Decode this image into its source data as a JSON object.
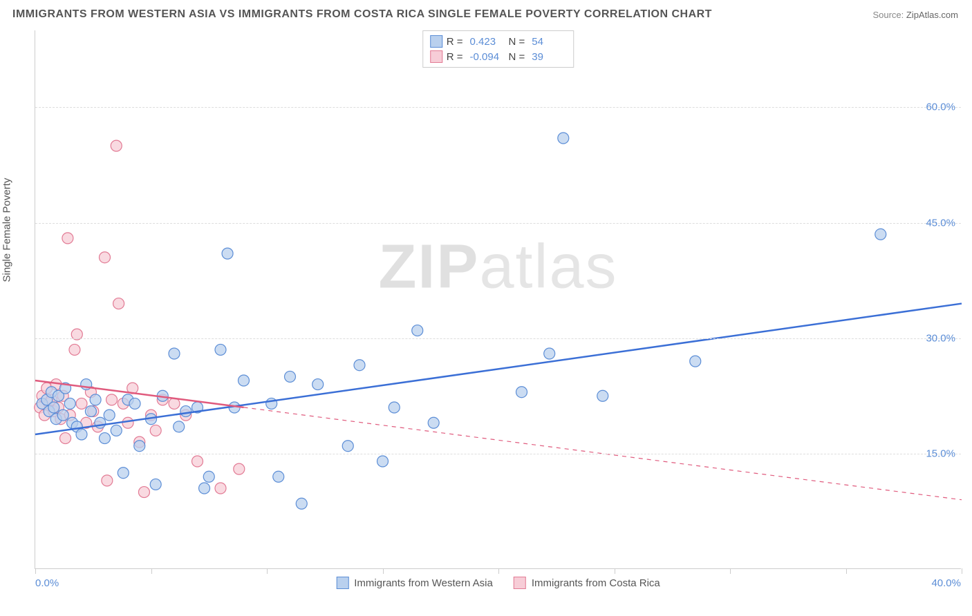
{
  "title": "IMMIGRANTS FROM WESTERN ASIA VS IMMIGRANTS FROM COSTA RICA SINGLE FEMALE POVERTY CORRELATION CHART",
  "source_label": "Source: ",
  "source_value": "ZipAtlas.com",
  "ylabel": "Single Female Poverty",
  "watermark_bold": "ZIP",
  "watermark_light": "atlas",
  "chart": {
    "type": "scatter",
    "xlim": [
      0,
      40
    ],
    "ylim": [
      0,
      70
    ],
    "x_tick_positions": [
      0,
      5,
      10,
      15,
      20,
      25,
      30,
      35,
      40
    ],
    "x_ticklabels_shown": {
      "0": "0.0%",
      "40": "40.0%"
    },
    "y_gridlines": [
      15,
      30,
      45,
      60
    ],
    "y_ticklabels": [
      "15.0%",
      "30.0%",
      "45.0%",
      "60.0%"
    ],
    "grid_color": "#dddddd",
    "axis_color": "#cccccc",
    "tick_label_color": "#5b8dd6",
    "background_color": "#ffffff",
    "marker_radius": 8,
    "marker_stroke_width": 1.2,
    "trend_line_width": 2.5,
    "series": [
      {
        "name": "Immigrants from Western Asia",
        "fill_color": "#b9d0ee",
        "stroke_color": "#5b8dd6",
        "trend_color": "#3b6fd6",
        "trend_solid_range": [
          0,
          40
        ],
        "R": "0.423",
        "N": "54",
        "trend_line": {
          "x1": 0,
          "y1": 17.5,
          "x2": 40,
          "y2": 34.5
        },
        "points": [
          [
            0.3,
            21.5
          ],
          [
            0.5,
            22.0
          ],
          [
            0.6,
            20.5
          ],
          [
            0.7,
            23.0
          ],
          [
            0.8,
            21.0
          ],
          [
            0.9,
            19.5
          ],
          [
            1.0,
            22.5
          ],
          [
            1.2,
            20.0
          ],
          [
            1.3,
            23.5
          ],
          [
            1.5,
            21.5
          ],
          [
            1.6,
            19.0
          ],
          [
            1.8,
            18.5
          ],
          [
            2.0,
            17.5
          ],
          [
            2.2,
            24.0
          ],
          [
            2.4,
            20.5
          ],
          [
            2.6,
            22.0
          ],
          [
            2.8,
            19.0
          ],
          [
            3.0,
            17.0
          ],
          [
            3.2,
            20.0
          ],
          [
            3.5,
            18.0
          ],
          [
            3.8,
            12.5
          ],
          [
            4.0,
            22.0
          ],
          [
            4.3,
            21.5
          ],
          [
            4.5,
            16.0
          ],
          [
            5.0,
            19.5
          ],
          [
            5.2,
            11.0
          ],
          [
            5.5,
            22.5
          ],
          [
            6.0,
            28.0
          ],
          [
            6.2,
            18.5
          ],
          [
            6.5,
            20.5
          ],
          [
            7.0,
            21.0
          ],
          [
            7.3,
            10.5
          ],
          [
            7.5,
            12.0
          ],
          [
            8.0,
            28.5
          ],
          [
            8.3,
            41.0
          ],
          [
            8.6,
            21.0
          ],
          [
            9.0,
            24.5
          ],
          [
            10.2,
            21.5
          ],
          [
            10.5,
            12.0
          ],
          [
            11.0,
            25.0
          ],
          [
            11.5,
            8.5
          ],
          [
            12.2,
            24.0
          ],
          [
            13.5,
            16.0
          ],
          [
            14.0,
            26.5
          ],
          [
            15.0,
            14.0
          ],
          [
            15.5,
            21.0
          ],
          [
            16.5,
            31.0
          ],
          [
            17.2,
            19.0
          ],
          [
            21.0,
            23.0
          ],
          [
            22.2,
            28.0
          ],
          [
            22.8,
            56.0
          ],
          [
            24.5,
            22.5
          ],
          [
            28.5,
            27.0
          ],
          [
            36.5,
            43.5
          ]
        ]
      },
      {
        "name": "Immigrants from Costa Rica",
        "fill_color": "#f7cdd7",
        "stroke_color": "#e27a94",
        "trend_color": "#e05a7d",
        "trend_solid_range": [
          0,
          9
        ],
        "R": "-0.094",
        "N": "39",
        "trend_line": {
          "x1": 0,
          "y1": 24.5,
          "x2": 40,
          "y2": 9.0
        },
        "points": [
          [
            0.2,
            21.0
          ],
          [
            0.3,
            22.5
          ],
          [
            0.4,
            20.0
          ],
          [
            0.5,
            23.5
          ],
          [
            0.6,
            21.5
          ],
          [
            0.7,
            22.0
          ],
          [
            0.8,
            20.5
          ],
          [
            0.9,
            24.0
          ],
          [
            1.0,
            21.0
          ],
          [
            1.1,
            19.5
          ],
          [
            1.2,
            22.5
          ],
          [
            1.3,
            17.0
          ],
          [
            1.4,
            43.0
          ],
          [
            1.5,
            20.0
          ],
          [
            1.7,
            28.5
          ],
          [
            1.8,
            30.5
          ],
          [
            2.0,
            21.5
          ],
          [
            2.2,
            19.0
          ],
          [
            2.4,
            23.0
          ],
          [
            2.5,
            20.5
          ],
          [
            2.7,
            18.5
          ],
          [
            3.0,
            40.5
          ],
          [
            3.1,
            11.5
          ],
          [
            3.3,
            22.0
          ],
          [
            3.5,
            55.0
          ],
          [
            3.6,
            34.5
          ],
          [
            3.8,
            21.5
          ],
          [
            4.0,
            19.0
          ],
          [
            4.2,
            23.5
          ],
          [
            4.5,
            16.5
          ],
          [
            4.7,
            10.0
          ],
          [
            5.0,
            20.0
          ],
          [
            5.2,
            18.0
          ],
          [
            5.5,
            22.0
          ],
          [
            6.0,
            21.5
          ],
          [
            6.5,
            20.0
          ],
          [
            7.0,
            14.0
          ],
          [
            8.0,
            10.5
          ],
          [
            8.8,
            13.0
          ]
        ]
      }
    ]
  },
  "legend_top": [
    {
      "series_idx": 0,
      "R_label": "R =",
      "N_label": "N ="
    },
    {
      "series_idx": 1,
      "R_label": "R =",
      "N_label": "N ="
    }
  ]
}
